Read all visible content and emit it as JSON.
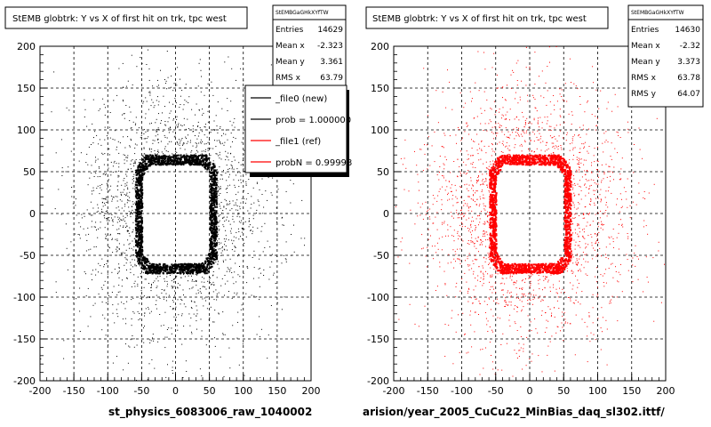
{
  "chart_data": [
    {
      "type": "scatter",
      "title": "StEMB globtrk: Y vs X of first hit on trk, tpc west",
      "xlabel": "st_physics_6083006_raw_1040002",
      "ylabel": "",
      "xlim": [
        -200,
        200
      ],
      "ylim": [
        -200,
        200
      ],
      "x_ticks": [
        "-200",
        "-150",
        "-100",
        "-50",
        "0",
        "50",
        "100",
        "150",
        "200"
      ],
      "y_ticks": [
        "200",
        "150",
        "100",
        "50",
        "0",
        "-50",
        "-100",
        "-150",
        "-200"
      ],
      "grid": true,
      "color": "#000000",
      "stats": {
        "header": "StEMBGaGHkXYfTW",
        "rows": [
          {
            "label": "Entries",
            "value": "14629"
          },
          {
            "label": "Mean x",
            "value": "-2.323"
          },
          {
            "label": "Mean y",
            "value": "3.361"
          },
          {
            "label": "RMS x",
            "value": "63.79"
          }
        ]
      },
      "legend": {
        "placement": "top-right",
        "entries": [
          {
            "label": "_file0 (new)",
            "color": "#000000"
          },
          {
            "label": "prob = 1.000000",
            "color": "#000000"
          },
          {
            "label": "_file1 (ref)",
            "color": "#ff0000"
          },
          {
            "label": "probN = 0.99998",
            "color": "#ff0000"
          }
        ]
      },
      "ring": {
        "x_min": -55,
        "x_max": 55,
        "y_min": -65,
        "y_max": 65
      }
    },
    {
      "type": "scatter",
      "title": "StEMB globtrk: Y vs X of first hit on trk, tpc west",
      "xlabel": "arision/year_2005_CuCu22_MinBias_daq_sl302.ittf/",
      "ylabel": "",
      "xlim": [
        -200,
        200
      ],
      "ylim": [
        -200,
        200
      ],
      "x_ticks": [
        "-200",
        "-150",
        "-100",
        "-50",
        "0",
        "50",
        "100",
        "150",
        "200"
      ],
      "y_ticks": [
        "200",
        "150",
        "100",
        "50",
        "0",
        "-50",
        "-100",
        "-150",
        "-200"
      ],
      "grid": true,
      "color": "#ff0000",
      "stats": {
        "header": "StEMBGaGHkXYfTW",
        "rows": [
          {
            "label": "Entries",
            "value": "14630"
          },
          {
            "label": "Mean x",
            "value": "-2.32"
          },
          {
            "label": "Mean y",
            "value": "3.373"
          },
          {
            "label": "RMS x",
            "value": "63.78"
          },
          {
            "label": "RMS y",
            "value": "64.07"
          }
        ]
      },
      "ring": {
        "x_min": -55,
        "x_max": 55,
        "y_min": -65,
        "y_max": 65
      }
    }
  ]
}
